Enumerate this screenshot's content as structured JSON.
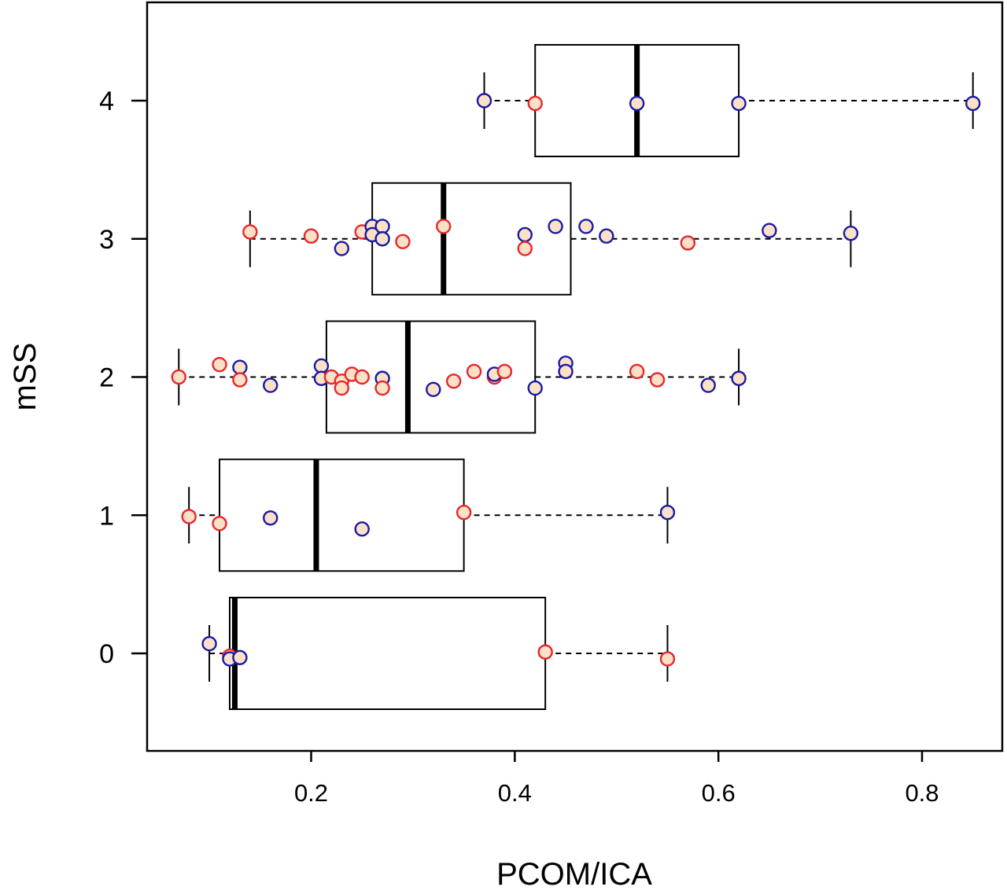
{
  "chart_data": {
    "type": "boxplot",
    "orientation": "horizontal",
    "xlabel": "PCOM/ICA",
    "ylabel": "mSS",
    "xlim": [
      0.04,
      0.87
    ],
    "ylim": [
      -0.7,
      4.55
    ],
    "x_ticks": [
      0.2,
      0.4,
      0.6,
      0.8
    ],
    "x_tick_labels": [
      "0.2",
      "0.4",
      "0.6",
      "0.8"
    ],
    "y_ticks": [
      0,
      1,
      2,
      3,
      4
    ],
    "y_tick_labels": [
      "0",
      "1",
      "2",
      "3",
      "4"
    ],
    "grid": false,
    "colors": {
      "red_group": "#e8262d",
      "blue_group": "#1a1aa6",
      "point_fill": "#fbe1c8"
    },
    "groups": [
      {
        "category": 0,
        "whisker_low": 0.1,
        "q1": 0.12,
        "median": 0.125,
        "q3": 0.43,
        "whisker_high": 0.55,
        "points": [
          {
            "x": 0.1,
            "y": 0.07,
            "group": "blue"
          },
          {
            "x": 0.12,
            "y": -0.02,
            "group": "red"
          },
          {
            "x": 0.12,
            "y": -0.04,
            "group": "blue"
          },
          {
            "x": 0.13,
            "y": -0.03,
            "group": "blue"
          },
          {
            "x": 0.43,
            "y": 0.01,
            "group": "red"
          },
          {
            "x": 0.55,
            "y": -0.04,
            "group": "red"
          }
        ]
      },
      {
        "category": 1,
        "whisker_low": 0.08,
        "q1": 0.11,
        "median": 0.205,
        "q3": 0.35,
        "whisker_high": 0.55,
        "points": [
          {
            "x": 0.08,
            "y": 0.99,
            "group": "red"
          },
          {
            "x": 0.11,
            "y": 0.94,
            "group": "red"
          },
          {
            "x": 0.16,
            "y": 0.98,
            "group": "blue"
          },
          {
            "x": 0.25,
            "y": 0.9,
            "group": "blue"
          },
          {
            "x": 0.35,
            "y": 1.02,
            "group": "red"
          },
          {
            "x": 0.55,
            "y": 1.02,
            "group": "blue"
          }
        ]
      },
      {
        "category": 2,
        "whisker_low": 0.07,
        "q1": 0.215,
        "median": 0.295,
        "q3": 0.42,
        "whisker_high": 0.62,
        "points": [
          {
            "x": 0.07,
            "y": 2.0,
            "group": "red"
          },
          {
            "x": 0.11,
            "y": 2.09,
            "group": "red"
          },
          {
            "x": 0.13,
            "y": 2.07,
            "group": "blue"
          },
          {
            "x": 0.13,
            "y": 1.98,
            "group": "red"
          },
          {
            "x": 0.16,
            "y": 1.94,
            "group": "blue"
          },
          {
            "x": 0.21,
            "y": 2.08,
            "group": "blue"
          },
          {
            "x": 0.21,
            "y": 1.99,
            "group": "blue"
          },
          {
            "x": 0.22,
            "y": 2.0,
            "group": "red"
          },
          {
            "x": 0.23,
            "y": 1.97,
            "group": "red"
          },
          {
            "x": 0.23,
            "y": 1.92,
            "group": "red"
          },
          {
            "x": 0.24,
            "y": 2.02,
            "group": "red"
          },
          {
            "x": 0.25,
            "y": 2.0,
            "group": "red"
          },
          {
            "x": 0.27,
            "y": 1.99,
            "group": "blue"
          },
          {
            "x": 0.27,
            "y": 1.92,
            "group": "red"
          },
          {
            "x": 0.32,
            "y": 1.91,
            "group": "blue"
          },
          {
            "x": 0.34,
            "y": 1.97,
            "group": "red"
          },
          {
            "x": 0.36,
            "y": 2.04,
            "group": "red"
          },
          {
            "x": 0.38,
            "y": 2.0,
            "group": "red"
          },
          {
            "x": 0.38,
            "y": 2.02,
            "group": "blue"
          },
          {
            "x": 0.39,
            "y": 2.04,
            "group": "red"
          },
          {
            "x": 0.42,
            "y": 1.92,
            "group": "blue"
          },
          {
            "x": 0.45,
            "y": 2.1,
            "group": "blue"
          },
          {
            "x": 0.45,
            "y": 2.04,
            "group": "blue"
          },
          {
            "x": 0.52,
            "y": 2.04,
            "group": "red"
          },
          {
            "x": 0.54,
            "y": 1.98,
            "group": "red"
          },
          {
            "x": 0.59,
            "y": 1.94,
            "group": "blue"
          },
          {
            "x": 0.62,
            "y": 1.99,
            "group": "blue"
          }
        ]
      },
      {
        "category": 3,
        "whisker_low": 0.14,
        "q1": 0.26,
        "median": 0.33,
        "q3": 0.455,
        "whisker_high": 0.73,
        "points": [
          {
            "x": 0.14,
            "y": 3.05,
            "group": "red"
          },
          {
            "x": 0.2,
            "y": 3.02,
            "group": "red"
          },
          {
            "x": 0.23,
            "y": 2.93,
            "group": "blue"
          },
          {
            "x": 0.25,
            "y": 3.05,
            "group": "red"
          },
          {
            "x": 0.26,
            "y": 3.09,
            "group": "blue"
          },
          {
            "x": 0.26,
            "y": 3.03,
            "group": "blue"
          },
          {
            "x": 0.27,
            "y": 3.09,
            "group": "blue"
          },
          {
            "x": 0.27,
            "y": 3.0,
            "group": "blue"
          },
          {
            "x": 0.29,
            "y": 2.98,
            "group": "red"
          },
          {
            "x": 0.33,
            "y": 3.09,
            "group": "red"
          },
          {
            "x": 0.41,
            "y": 3.03,
            "group": "blue"
          },
          {
            "x": 0.41,
            "y": 2.93,
            "group": "red"
          },
          {
            "x": 0.44,
            "y": 3.09,
            "group": "blue"
          },
          {
            "x": 0.47,
            "y": 3.09,
            "group": "blue"
          },
          {
            "x": 0.49,
            "y": 3.02,
            "group": "blue"
          },
          {
            "x": 0.57,
            "y": 2.97,
            "group": "red"
          },
          {
            "x": 0.65,
            "y": 3.06,
            "group": "blue"
          },
          {
            "x": 0.73,
            "y": 3.04,
            "group": "blue"
          }
        ]
      },
      {
        "category": 4,
        "whisker_low": 0.37,
        "q1": 0.42,
        "median": 0.52,
        "q3": 0.62,
        "whisker_high": 0.85,
        "points": [
          {
            "x": 0.37,
            "y": 4.0,
            "group": "blue"
          },
          {
            "x": 0.42,
            "y": 3.98,
            "group": "red"
          },
          {
            "x": 0.52,
            "y": 3.98,
            "group": "blue"
          },
          {
            "x": 0.62,
            "y": 3.98,
            "group": "blue"
          },
          {
            "x": 0.85,
            "y": 3.98,
            "group": "blue"
          }
        ]
      }
    ]
  }
}
